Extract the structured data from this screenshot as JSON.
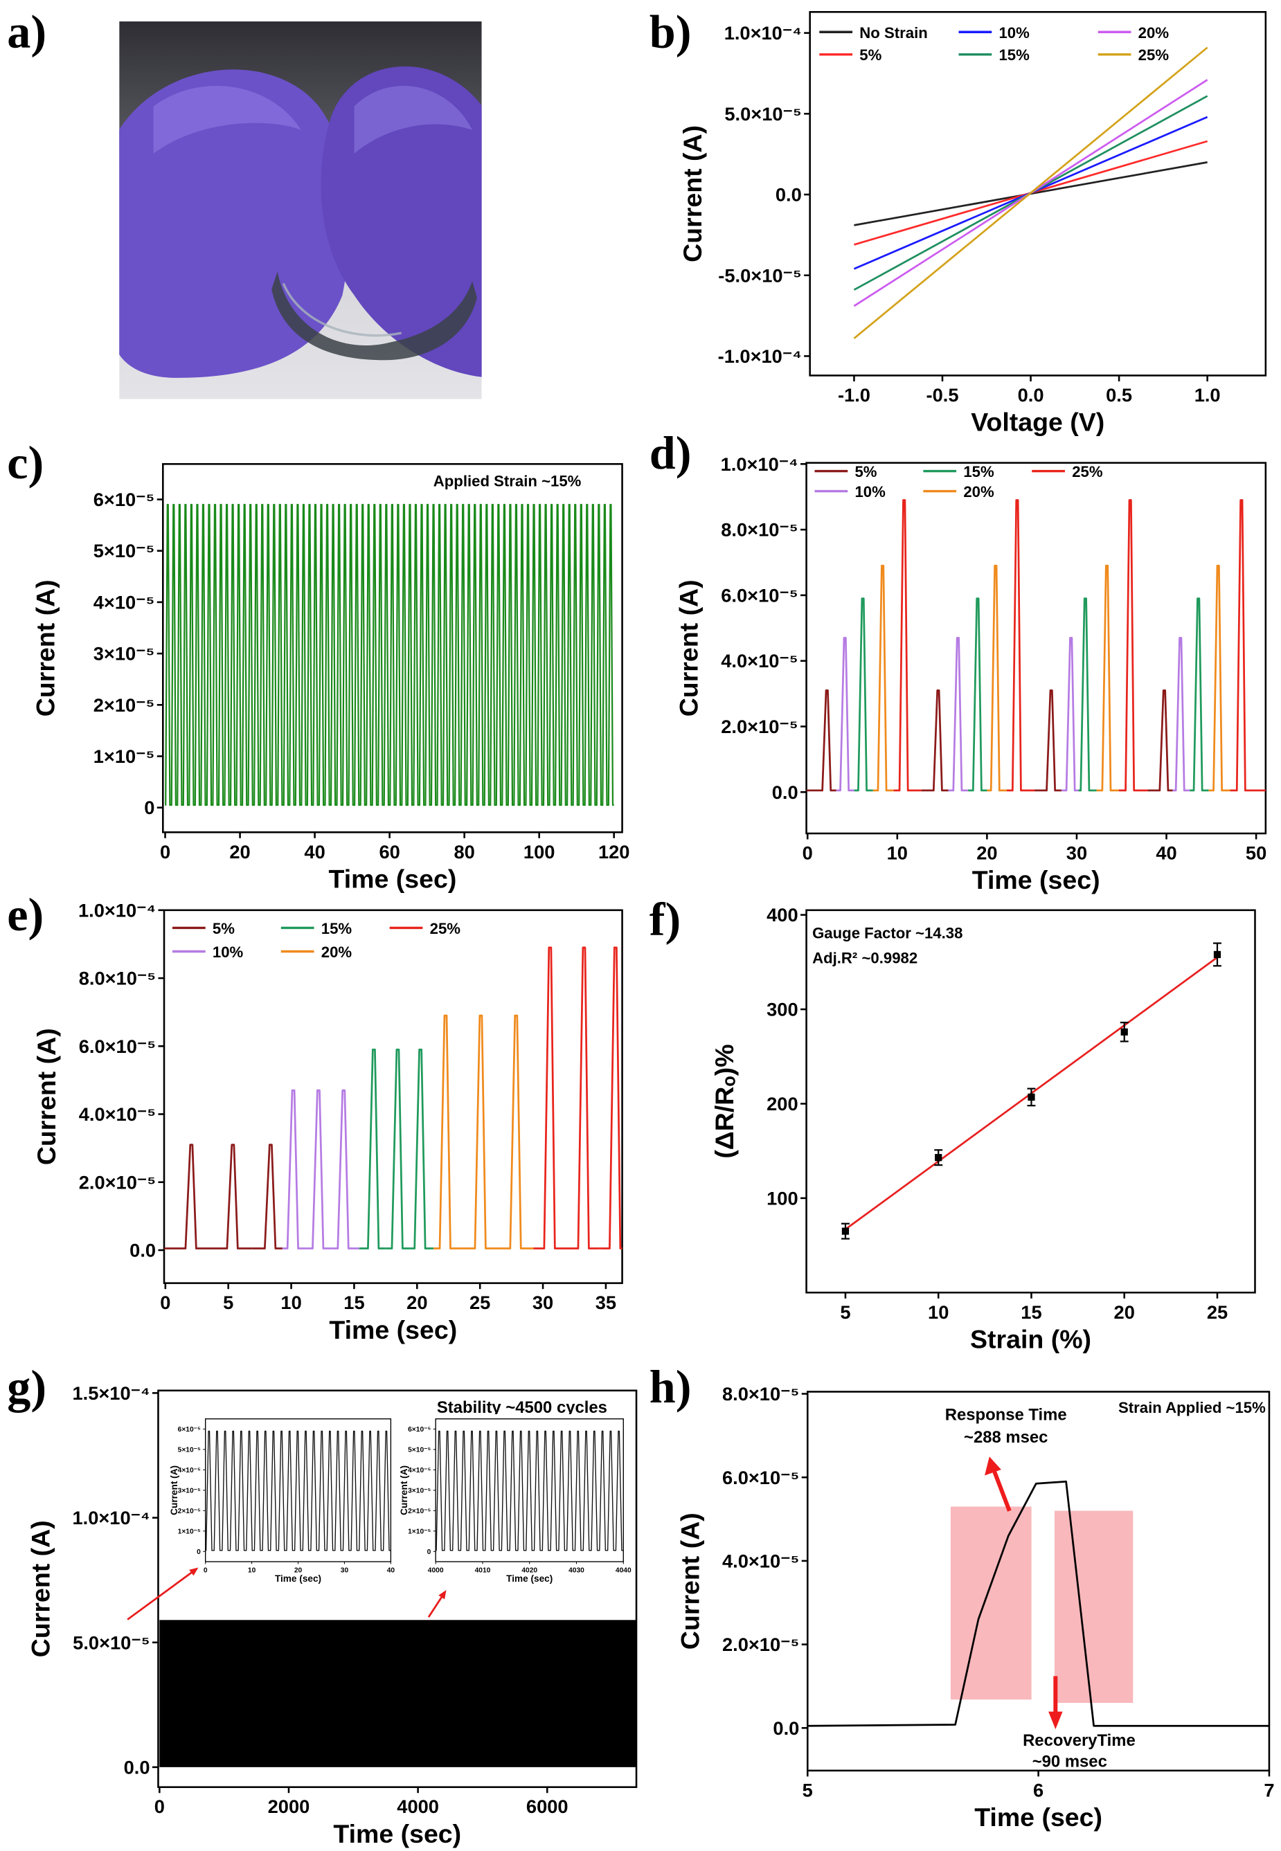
{
  "panels": {
    "a": "a)",
    "b": "b)",
    "c": "c)",
    "d": "d)",
    "e": "e)",
    "f": "f)",
    "g": "g)",
    "h": "h)"
  },
  "photo": {
    "description_icon": "gloved-hands-bending-film-photo",
    "glove_color": "#6b52c8"
  },
  "chart_data": [
    {
      "id": "b",
      "type": "line",
      "xlabel": "Voltage (V)",
      "ylabel": "Current (A)",
      "xlim": [
        -1.25,
        1.33
      ],
      "ylim": [
        -0.000112,
        0.000113
      ],
      "xticks": [
        {
          "v": -1,
          "label": "-1.0"
        },
        {
          "v": -0.5,
          "label": "-0.5"
        },
        {
          "v": 0,
          "label": "0.0"
        },
        {
          "v": 0.5,
          "label": "0.5"
        },
        {
          "v": 1,
          "label": "1.0"
        }
      ],
      "yticks": [
        {
          "v": 0.0001,
          "label": "1.0×10⁻⁴"
        },
        {
          "v": 5e-05,
          "label": "5.0×10⁻⁵"
        },
        {
          "v": 0,
          "label": "0.0"
        },
        {
          "v": -5e-05,
          "label": "-5.0×10⁻⁵"
        },
        {
          "v": -0.0001,
          "label": "-1.0×10⁻⁴"
        }
      ],
      "legend": "top-left",
      "series": [
        {
          "name": "No Strain",
          "color": "#222222",
          "x": [
            -1,
            1
          ],
          "y": [
            -1.9e-05,
            2e-05
          ]
        },
        {
          "name": "5%",
          "color": "#ff2a2a",
          "x": [
            -1,
            1
          ],
          "y": [
            -3.1e-05,
            3.3e-05
          ]
        },
        {
          "name": "10%",
          "color": "#1a1aff",
          "x": [
            -1,
            1
          ],
          "y": [
            -4.6e-05,
            4.8e-05
          ]
        },
        {
          "name": "15%",
          "color": "#1f8f60",
          "x": [
            -1,
            1
          ],
          "y": [
            -5.9e-05,
            6.1e-05
          ]
        },
        {
          "name": "20%",
          "color": "#cc5cf0",
          "x": [
            -1,
            1
          ],
          "y": [
            -6.9e-05,
            7.1e-05
          ]
        },
        {
          "name": "25%",
          "color": "#d4a21a",
          "x": [
            -1,
            1
          ],
          "y": [
            -8.9e-05,
            9.1e-05
          ]
        }
      ]
    },
    {
      "id": "c",
      "type": "line",
      "xlabel": "Time (sec)",
      "ylabel": "Current (A)",
      "xlim": [
        -0.6,
        122.2
      ],
      "ylim": [
        -4.8e-06,
        6.69e-05
      ],
      "xticks": [
        {
          "v": 0,
          "label": "0"
        },
        {
          "v": 20,
          "label": "20"
        },
        {
          "v": 40,
          "label": "40"
        },
        {
          "v": 60,
          "label": "60"
        },
        {
          "v": 80,
          "label": "80"
        },
        {
          "v": 100,
          "label": "100"
        },
        {
          "v": 120,
          "label": "120"
        }
      ],
      "yticks": [
        {
          "v": 6e-05,
          "label": "6×10⁻⁵"
        },
        {
          "v": 5e-05,
          "label": "5×10⁻⁵"
        },
        {
          "v": 4e-05,
          "label": "4×10⁻⁵"
        },
        {
          "v": 3e-05,
          "label": "3×10⁻⁵"
        },
        {
          "v": 2e-05,
          "label": "2×10⁻⁵"
        },
        {
          "v": 1e-05,
          "label": "1×10⁻⁵"
        },
        {
          "v": 0,
          "label": "0"
        }
      ],
      "annotation": "Applied Strain ~15%",
      "series": [
        {
          "color": "#1a8a1a",
          "pulse_peak": 5.9e-05,
          "baseline": 5e-07,
          "cycles": 76,
          "t_start": 0,
          "t_end": 120
        }
      ]
    },
    {
      "id": "d",
      "type": "line",
      "xlabel": "Time (sec)",
      "ylabel": "Current (A)",
      "xlim": [
        -0.13,
        51.06
      ],
      "ylim": [
        -1.26e-05,
        0.00010036
      ],
      "xticks": [
        {
          "v": 0,
          "label": "0"
        },
        {
          "v": 10,
          "label": "10"
        },
        {
          "v": 20,
          "label": "20"
        },
        {
          "v": 30,
          "label": "30"
        },
        {
          "v": 40,
          "label": "40"
        },
        {
          "v": 50,
          "label": "50"
        }
      ],
      "yticks": [
        {
          "v": 0.0001,
          "label": "1.0×10⁻⁴"
        },
        {
          "v": 8e-05,
          "label": "8.0×10⁻⁵"
        },
        {
          "v": 6e-05,
          "label": "6.0×10⁻⁵"
        },
        {
          "v": 4e-05,
          "label": "4.0×10⁻⁵"
        },
        {
          "v": 2e-05,
          "label": "2.0×10⁻⁵"
        },
        {
          "v": 0,
          "label": "0.0"
        }
      ],
      "legend": "top-left",
      "series": [
        {
          "name": "5%",
          "color": "#8b1a1a",
          "peak": 3.1e-05,
          "pulses": [
            2.2,
            14.6,
            27.2,
            39.8
          ]
        },
        {
          "name": "10%",
          "color": "#b57be3",
          "peak": 4.7e-05,
          "pulses": [
            4.2,
            16.8,
            29.4,
            41.6
          ]
        },
        {
          "name": "15%",
          "color": "#1f9a5c",
          "peak": 5.9e-05,
          "pulses": [
            6.2,
            19.0,
            31.0,
            43.6
          ]
        },
        {
          "name": "20%",
          "color": "#f08a1c",
          "peak": 6.9e-05,
          "pulses": [
            8.4,
            21.0,
            33.4,
            45.8
          ]
        },
        {
          "name": "25%",
          "color": "#e8241c",
          "peak": 8.9e-05,
          "pulses": [
            10.8,
            23.4,
            36.0,
            48.4
          ]
        }
      ]
    },
    {
      "id": "e",
      "type": "line",
      "xlabel": "Time (sec)",
      "ylabel": "Current (A)",
      "xlim": [
        -0.1,
        36.3
      ],
      "ylim": [
        -9.7e-06,
        0.0001
      ],
      "xticks": [
        {
          "v": 0,
          "label": "0"
        },
        {
          "v": 5,
          "label": "5"
        },
        {
          "v": 10,
          "label": "10"
        },
        {
          "v": 15,
          "label": "15"
        },
        {
          "v": 20,
          "label": "20"
        },
        {
          "v": 25,
          "label": "25"
        },
        {
          "v": 30,
          "label": "30"
        },
        {
          "v": 35,
          "label": "35"
        }
      ],
      "yticks": [
        {
          "v": 0.0001,
          "label": "1.0×10⁻⁴"
        },
        {
          "v": 8e-05,
          "label": "8.0×10⁻⁵"
        },
        {
          "v": 6e-05,
          "label": "6.0×10⁻⁵"
        },
        {
          "v": 4e-05,
          "label": "4.0×10⁻⁵"
        },
        {
          "v": 2e-05,
          "label": "2.0×10⁻⁵"
        },
        {
          "v": 0,
          "label": "0.0"
        }
      ],
      "legend": "top-left",
      "series": [
        {
          "name": "5%",
          "color": "#8b1a1a",
          "peak": 3.1e-05,
          "pulses": [
            2.1,
            5.4,
            8.4
          ]
        },
        {
          "name": "10%",
          "color": "#b57be3",
          "peak": 4.7e-05,
          "pulses": [
            10.2,
            12.2,
            14.2
          ]
        },
        {
          "name": "15%",
          "color": "#1f9a5c",
          "peak": 5.9e-05,
          "pulses": [
            16.6,
            18.5,
            20.3
          ]
        },
        {
          "name": "20%",
          "color": "#f08a1c",
          "peak": 6.9e-05,
          "pulses": [
            22.3,
            25.1,
            27.9
          ]
        },
        {
          "name": "25%",
          "color": "#e8241c",
          "peak": 8.9e-05,
          "pulses": [
            30.6,
            33.3,
            35.8
          ]
        }
      ]
    },
    {
      "id": "f",
      "type": "scatter",
      "xlabel": "Strain (%)",
      "ylabel": "(ΔR/Rₒ)%",
      "xlim": [
        2.9,
        27.03
      ],
      "ylim": [
        0,
        405
      ],
      "xticks": [
        {
          "v": 5,
          "label": "5"
        },
        {
          "v": 10,
          "label": "10"
        },
        {
          "v": 15,
          "label": "15"
        },
        {
          "v": 20,
          "label": "20"
        },
        {
          "v": 25,
          "label": "25"
        }
      ],
      "yticks": [
        {
          "v": 100,
          "label": "100"
        },
        {
          "v": 200,
          "label": "200"
        },
        {
          "v": 300,
          "label": "300"
        },
        {
          "v": 400,
          "label": "400"
        }
      ],
      "annotations": [
        "Gauge Factor ~14.38",
        "Adj.R² ~0.9982"
      ],
      "points": {
        "x": [
          5,
          10,
          15,
          20,
          25
        ],
        "y": [
          65,
          143,
          207,
          276,
          358
        ],
        "err": [
          8,
          8,
          9,
          10,
          12
        ]
      },
      "fit": {
        "color": "#e82020",
        "x": [
          5,
          25
        ],
        "y": [
          67,
          355
        ]
      }
    },
    {
      "id": "g",
      "type": "area",
      "xlabel": "Time (sec)",
      "ylabel": "Current (A)",
      "xlim": [
        -20,
        7380
      ],
      "ylim": [
        -8e-06,
        0.000151
      ],
      "xticks": [
        {
          "v": 0,
          "label": "0"
        },
        {
          "v": 2000,
          "label": "2000"
        },
        {
          "v": 4000,
          "label": "4000"
        },
        {
          "v": 6000,
          "label": "6000"
        }
      ],
      "yticks": [
        {
          "v": 0.00015,
          "label": "1.5×10⁻⁴"
        },
        {
          "v": 0.0001,
          "label": "1.0×10⁻⁴"
        },
        {
          "v": 5e-05,
          "label": "5.0×10⁻⁵"
        },
        {
          "v": 0,
          "label": "0.0"
        }
      ],
      "annotation": "Stability ~4500 cycles",
      "fill": {
        "color": "#000000",
        "x": [
          0,
          7380
        ],
        "y": [
          0,
          5.9e-05
        ]
      },
      "insets": [
        {
          "id": "g-inset-1",
          "xlabel": "Time (sec)",
          "ylabel": "Current (A)",
          "xlim": [
            0,
            40
          ],
          "ylim": [
            -5e-06,
            6.5e-05
          ],
          "xticks": [
            {
              "v": 0,
              "label": "0"
            },
            {
              "v": 10,
              "label": "10"
            },
            {
              "v": 20,
              "label": "20"
            },
            {
              "v": 30,
              "label": "30"
            },
            {
              "v": 40,
              "label": "40"
            }
          ],
          "yticks": [
            {
              "v": 6e-05,
              "label": "6×10⁻⁵"
            },
            {
              "v": 5e-05,
              "label": "5×10⁻⁵"
            },
            {
              "v": 4e-05,
              "label": "4×10⁻⁵"
            },
            {
              "v": 3e-05,
              "label": "3×10⁻⁵"
            },
            {
              "v": 2e-05,
              "label": "2×10⁻⁵"
            },
            {
              "v": 1e-05,
              "label": "1×10⁻⁵"
            },
            {
              "v": 0,
              "label": "0"
            }
          ],
          "series": [
            {
              "color": "#111111",
              "pulse_peak": 5.9e-05,
              "baseline": 5e-07,
              "cycles": 23,
              "t_start": 0,
              "t_end": 40
            }
          ]
        },
        {
          "id": "g-inset-2",
          "xlabel": "Time (sec)",
          "ylabel": "Current (A)",
          "xlim": [
            4000,
            4040
          ],
          "ylim": [
            -5e-06,
            6.5e-05
          ],
          "xticks": [
            {
              "v": 4000,
              "label": "4000"
            },
            {
              "v": 4010,
              "label": "4010"
            },
            {
              "v": 4020,
              "label": "4020"
            },
            {
              "v": 4030,
              "label": "4030"
            },
            {
              "v": 4040,
              "label": "4040"
            }
          ],
          "yticks": [
            {
              "v": 6e-05,
              "label": "6×10⁻⁵"
            },
            {
              "v": 5e-05,
              "label": "5×10⁻⁵"
            },
            {
              "v": 4e-05,
              "label": "4×10⁻⁵"
            },
            {
              "v": 3e-05,
              "label": "3×10⁻⁵"
            },
            {
              "v": 2e-05,
              "label": "2×10⁻⁵"
            },
            {
              "v": 1e-05,
              "label": "1×10⁻⁵"
            },
            {
              "v": 0,
              "label": "0"
            }
          ],
          "series": [
            {
              "color": "#111111",
              "pulse_peak": 5.9e-05,
              "baseline": 5e-07,
              "cycles": 23,
              "t_start": 4000,
              "t_end": 4040
            }
          ]
        }
      ]
    },
    {
      "id": "h",
      "type": "line",
      "xlabel": "Time (sec)",
      "ylabel": "Current (A)",
      "xlim": [
        5,
        7
      ],
      "ylim": [
        -1.02e-05,
        8.05e-05
      ],
      "xticks": [
        {
          "v": 5,
          "label": "5"
        },
        {
          "v": 6,
          "label": "6"
        },
        {
          "v": 7,
          "label": "7"
        }
      ],
      "yticks": [
        {
          "v": 8e-05,
          "label": "8.0×10⁻⁵"
        },
        {
          "v": 6e-05,
          "label": "6.0×10⁻⁵"
        },
        {
          "v": 4e-05,
          "label": "4.0×10⁻⁵"
        },
        {
          "v": 2e-05,
          "label": "2.0×10⁻⁵"
        },
        {
          "v": 0,
          "label": "0.0"
        }
      ],
      "annotations": {
        "strain": "Strain Applied ~15%",
        "response": [
          "Response Time",
          "~288 msec"
        ],
        "recovery": [
          "RecoveryTime",
          "~90 msec"
        ]
      },
      "series": [
        {
          "color": "#000000",
          "x": [
            5,
            5.64,
            5.74,
            5.87,
            5.99,
            6.12,
            6.24,
            7
          ],
          "y": [
            5e-07,
            8e-07,
            2.6e-05,
            4.6e-05,
            5.85e-05,
            5.9e-05,
            5e-07,
            5e-07
          ]
        }
      ],
      "highlights": [
        {
          "color": "#f8b8bc",
          "x": [
            5.62,
            5.97
          ],
          "y": [
            6.8e-06,
            5.3e-05
          ]
        },
        {
          "color": "#f8b8bc",
          "x": [
            6.07,
            6.41
          ],
          "y": [
            6e-06,
            5.2e-05
          ]
        }
      ],
      "arrow_color": "#ee1c1c"
    }
  ]
}
